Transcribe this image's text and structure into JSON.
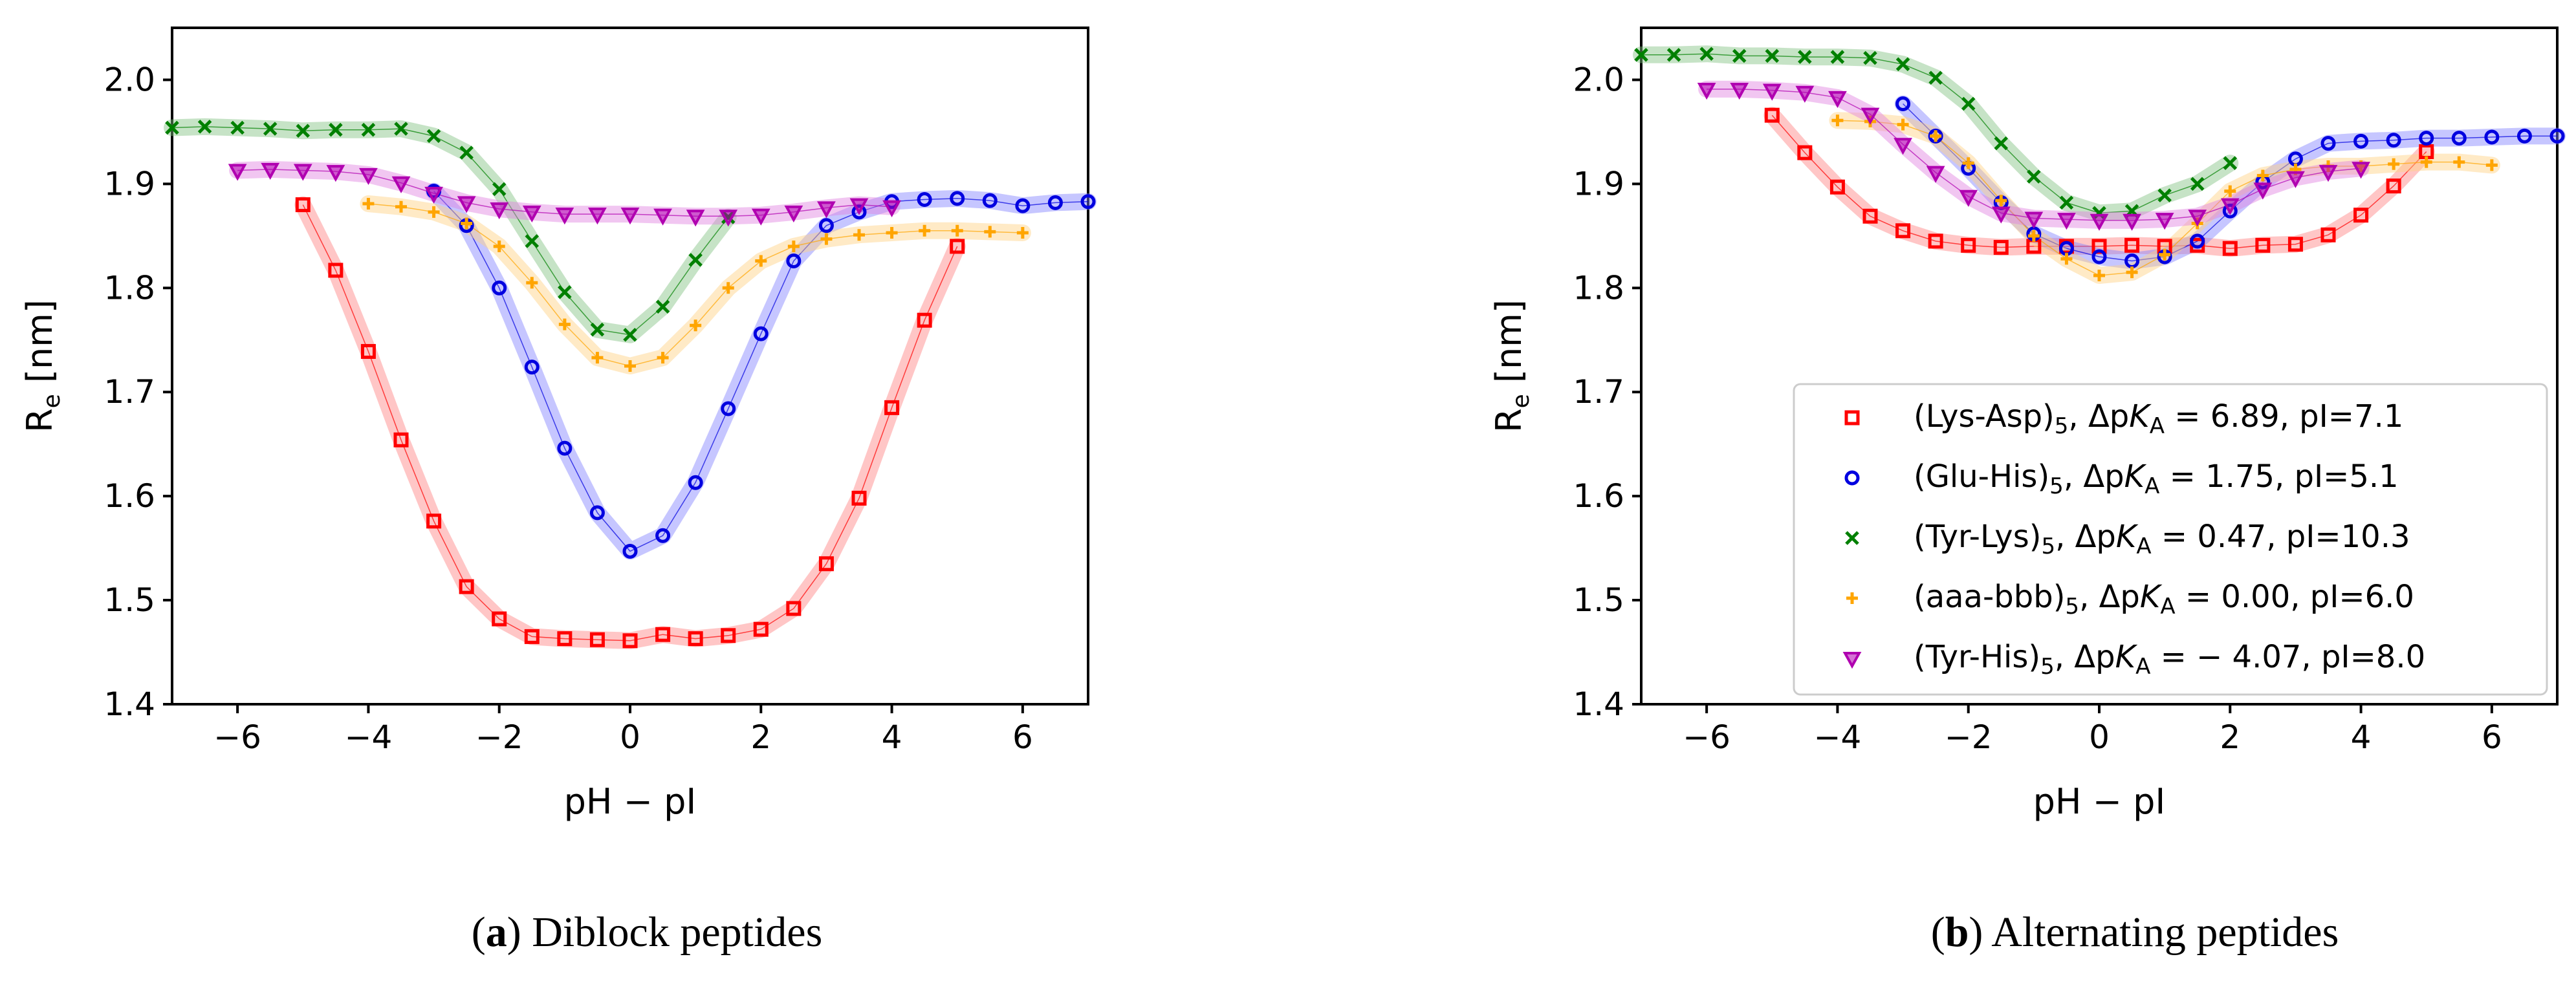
{
  "chart_data": [
    {
      "type": "scatter",
      "panel_letter": "a",
      "caption": "Diblock peptides",
      "xlabel": "pH − pI",
      "ylabel_main": "R",
      "ylabel_sub": "e",
      "ylabel_unit": " [nm]",
      "xlim": [
        -7,
        7
      ],
      "ylim": [
        1.4,
        2.05
      ],
      "xticks": [
        -6,
        -4,
        -2,
        0,
        2,
        4,
        6
      ],
      "xtick_labels": [
        "−6",
        "−4",
        "−2",
        "0",
        "2",
        "4",
        "6"
      ],
      "yticks": [
        1.4,
        1.5,
        1.6,
        1.7,
        1.8,
        1.9,
        2.0
      ],
      "ytick_labels": [
        "1.4",
        "1.5",
        "1.6",
        "1.7",
        "1.8",
        "1.9",
        "2.0"
      ],
      "series": [
        {
          "name": "(Lys-Asp)5",
          "marker": "square",
          "color": "#ff0000",
          "band_color": "#ff8080",
          "x": [
            -5.0,
            -4.5,
            -4.0,
            -3.5,
            -3.0,
            -2.5,
            -2.0,
            -1.5,
            -1.0,
            -0.5,
            0.0,
            0.5,
            1.0,
            1.5,
            2.0,
            2.5,
            3.0,
            3.5,
            4.0,
            4.5,
            5.0
          ],
          "y": [
            1.88,
            1.817,
            1.739,
            1.654,
            1.576,
            1.513,
            1.482,
            1.465,
            1.463,
            1.462,
            1.461,
            1.467,
            1.463,
            1.466,
            1.472,
            1.492,
            1.535,
            1.598,
            1.685,
            1.769,
            1.84
          ]
        },
        {
          "name": "(Glu-His)5",
          "marker": "circle",
          "color": "#0000e0",
          "band_color": "#8080ff",
          "x": [
            -3.0,
            -2.5,
            -2.0,
            -1.5,
            -1.0,
            -0.5,
            0.0,
            0.5,
            1.0,
            1.5,
            2.0,
            2.5,
            3.0,
            3.5,
            4.0,
            4.5,
            5.0,
            5.5,
            6.0,
            6.5,
            7.0
          ],
          "y": [
            1.893,
            1.86,
            1.8,
            1.724,
            1.646,
            1.584,
            1.547,
            1.562,
            1.613,
            1.684,
            1.756,
            1.826,
            1.86,
            1.873,
            1.883,
            1.885,
            1.886,
            1.884,
            1.879,
            1.882,
            1.883
          ]
        },
        {
          "name": "(Tyr-Lys)5",
          "marker": "x",
          "color": "#008000",
          "band_color": "#80c080",
          "x": [
            -7.0,
            -6.5,
            -6.0,
            -5.5,
            -5.0,
            -4.5,
            -4.0,
            -3.5,
            -3.0,
            -2.5,
            -2.0,
            -1.5,
            -1.0,
            -0.5,
            0.0,
            0.5,
            1.0,
            1.5
          ],
          "y": [
            1.954,
            1.955,
            1.954,
            1.953,
            1.951,
            1.952,
            1.952,
            1.953,
            1.946,
            1.93,
            1.895,
            1.845,
            1.796,
            1.76,
            1.755,
            1.782,
            1.827,
            1.868
          ]
        },
        {
          "name": "(aaa-bbb)5",
          "marker": "plus",
          "color": "#ffa500",
          "band_color": "#ffd080",
          "x": [
            -4.0,
            -3.5,
            -3.0,
            -2.5,
            -2.0,
            -1.5,
            -1.0,
            -0.5,
            0.0,
            0.5,
            1.0,
            1.5,
            2.0,
            2.5,
            3.0,
            3.5,
            4.0,
            4.5,
            5.0,
            5.5,
            6.0
          ],
          "y": [
            1.881,
            1.878,
            1.873,
            1.862,
            1.84,
            1.805,
            1.765,
            1.733,
            1.725,
            1.733,
            1.764,
            1.8,
            1.826,
            1.84,
            1.847,
            1.851,
            1.853,
            1.855,
            1.855,
            1.854,
            1.853
          ]
        },
        {
          "name": "(Tyr-His)5",
          "marker": "triangle_down",
          "color": "#b000b0",
          "band_color": "#e080e0",
          "x": [
            -6.0,
            -5.5,
            -5.0,
            -4.5,
            -4.0,
            -3.5,
            -3.0,
            -2.5,
            -2.0,
            -1.5,
            -1.0,
            -0.5,
            0.0,
            0.5,
            1.0,
            1.5,
            2.0,
            2.5,
            3.0,
            3.5,
            4.0
          ],
          "y": [
            1.913,
            1.914,
            1.913,
            1.912,
            1.909,
            1.901,
            1.891,
            1.882,
            1.876,
            1.873,
            1.871,
            1.871,
            1.871,
            1.87,
            1.869,
            1.869,
            1.87,
            1.873,
            1.877,
            1.88,
            1.878
          ]
        }
      ]
    },
    {
      "type": "scatter",
      "panel_letter": "b",
      "caption": "Alternating peptides",
      "xlabel": "pH − pI",
      "ylabel_main": "R",
      "ylabel_sub": "e",
      "ylabel_unit": " [nm]",
      "xlim": [
        -7,
        7
      ],
      "ylim": [
        1.4,
        2.05
      ],
      "xticks": [
        -6,
        -4,
        -2,
        0,
        2,
        4,
        6
      ],
      "xtick_labels": [
        "−6",
        "−4",
        "−2",
        "0",
        "2",
        "4",
        "6"
      ],
      "yticks": [
        1.4,
        1.5,
        1.6,
        1.7,
        1.8,
        1.9,
        2.0
      ],
      "ytick_labels": [
        "1.4",
        "1.5",
        "1.6",
        "1.7",
        "1.8",
        "1.9",
        "2.0"
      ],
      "legend": {
        "placement": "lower-right",
        "entries": [
          {
            "name": "(Lys-Asp)",
            "sub": "5",
            "mid": ", Δp",
            "k": "K",
            "ksub": "A",
            "rest": " = 6.89, pI=7.1"
          },
          {
            "name": "(Glu-His)",
            "sub": "5",
            "mid": ", Δp",
            "k": "K",
            "ksub": "A",
            "rest": " = 1.75, pI=5.1"
          },
          {
            "name": "(Tyr-Lys)",
            "sub": "5",
            "mid": ", Δp",
            "k": "K",
            "ksub": "A",
            "rest": " = 0.47, pI=10.3"
          },
          {
            "name": "(aaa-bbb)",
            "sub": "5",
            "mid": ", Δp",
            "k": "K",
            "ksub": "A",
            "rest": " = 0.00, pI=6.0"
          },
          {
            "name": "(Tyr-His)",
            "sub": "5",
            "mid": ", Δp",
            "k": "K",
            "ksub": "A",
            "rest": " = − 4.07, pI=8.0"
          }
        ]
      },
      "series": [
        {
          "name": "(Lys-Asp)5",
          "marker": "square",
          "color": "#ff0000",
          "band_color": "#ff8080",
          "x": [
            -5.0,
            -4.5,
            -4.0,
            -3.5,
            -3.0,
            -2.5,
            -2.0,
            -1.5,
            -1.0,
            -0.5,
            0.0,
            0.5,
            1.0,
            1.5,
            2.0,
            2.5,
            3.0,
            3.5,
            4.0,
            4.5,
            5.0
          ],
          "y": [
            1.966,
            1.93,
            1.897,
            1.869,
            1.855,
            1.845,
            1.841,
            1.839,
            1.84,
            1.84,
            1.84,
            1.841,
            1.84,
            1.841,
            1.838,
            1.841,
            1.842,
            1.851,
            1.87,
            1.898,
            1.931
          ]
        },
        {
          "name": "(Glu-His)5",
          "marker": "circle",
          "color": "#0000e0",
          "band_color": "#8080ff",
          "x": [
            -3.0,
            -2.5,
            -2.0,
            -1.5,
            -1.0,
            -0.5,
            0.0,
            0.5,
            1.0,
            1.5,
            2.0,
            2.5,
            3.0,
            3.5,
            4.0,
            4.5,
            5.0,
            5.5,
            6.0,
            6.5,
            7.0
          ],
          "y": [
            1.977,
            1.946,
            1.915,
            1.882,
            1.852,
            1.838,
            1.83,
            1.826,
            1.83,
            1.845,
            1.874,
            1.902,
            1.924,
            1.939,
            1.941,
            1.942,
            1.944,
            1.944,
            1.945,
            1.946,
            1.946
          ]
        },
        {
          "name": "(Tyr-Lys)5",
          "marker": "x",
          "color": "#008000",
          "band_color": "#80c080",
          "x": [
            -7.0,
            -6.5,
            -6.0,
            -5.5,
            -5.0,
            -4.5,
            -4.0,
            -3.5,
            -3.0,
            -2.5,
            -2.0,
            -1.5,
            -1.0,
            -0.5,
            0.0,
            0.5,
            1.0,
            1.5,
            2.0
          ],
          "y": [
            2.024,
            2.024,
            2.025,
            2.023,
            2.023,
            2.022,
            2.022,
            2.021,
            2.015,
            2.002,
            1.977,
            1.939,
            1.907,
            1.882,
            1.872,
            1.874,
            1.889,
            1.9,
            1.92
          ]
        },
        {
          "name": "(aaa-bbb)5",
          "marker": "plus",
          "color": "#ffa500",
          "band_color": "#ffd080",
          "x": [
            -4.0,
            -3.5,
            -3.0,
            -2.5,
            -2.0,
            -1.5,
            -1.0,
            -0.5,
            0.0,
            0.5,
            1.0,
            1.5,
            2.0,
            2.5,
            3.0,
            3.5,
            4.0,
            4.5,
            5.0,
            5.5,
            6.0
          ],
          "y": [
            1.961,
            1.96,
            1.957,
            1.946,
            1.92,
            1.884,
            1.85,
            1.828,
            1.812,
            1.815,
            1.832,
            1.862,
            1.893,
            1.908,
            1.914,
            1.917,
            1.917,
            1.919,
            1.921,
            1.921,
            1.918
          ]
        },
        {
          "name": "(Tyr-His)5",
          "marker": "triangle_down",
          "color": "#b000b0",
          "band_color": "#e080e0",
          "x": [
            -6.0,
            -5.5,
            -5.0,
            -4.5,
            -4.0,
            -3.5,
            -3.0,
            -2.5,
            -2.0,
            -1.5,
            -1.0,
            -0.5,
            0.0,
            0.5,
            1.0,
            1.5,
            2.0,
            2.5,
            3.0,
            3.5,
            4.0
          ],
          "y": [
            1.991,
            1.991,
            1.99,
            1.988,
            1.983,
            1.967,
            1.938,
            1.911,
            1.888,
            1.872,
            1.867,
            1.866,
            1.865,
            1.865,
            1.866,
            1.869,
            1.88,
            1.895,
            1.906,
            1.912,
            1.915
          ]
        }
      ]
    }
  ]
}
